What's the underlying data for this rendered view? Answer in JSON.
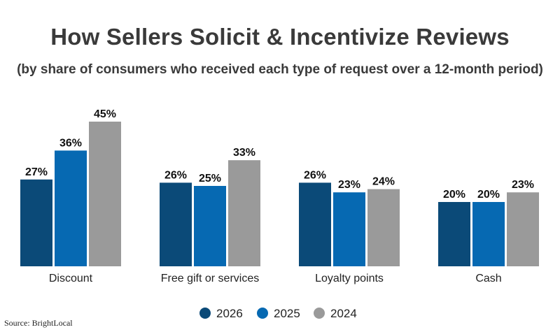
{
  "chart_data": {
    "type": "bar",
    "title": "How Sellers Solicit & Incentivize Reviews",
    "subtitle": "(by share of consumers who received each type of request over a 12-month period)",
    "categories": [
      "Discount",
      "Free gift or services",
      "Loyalty points",
      "Cash"
    ],
    "series": [
      {
        "name": "2026",
        "values": [
          27,
          26,
          26,
          20
        ],
        "color": "#0b4a78"
      },
      {
        "name": "2025",
        "values": [
          36,
          25,
          23,
          20
        ],
        "color": "#0669b2"
      },
      {
        "name": "2024",
        "values": [
          45,
          33,
          24,
          23
        ],
        "color": "#9a9a9a"
      }
    ],
    "value_suffix": "%",
    "ylim": [
      0,
      50
    ],
    "grid": false,
    "legend_position": "bottom-center"
  },
  "source": "Source: BrightLocal"
}
